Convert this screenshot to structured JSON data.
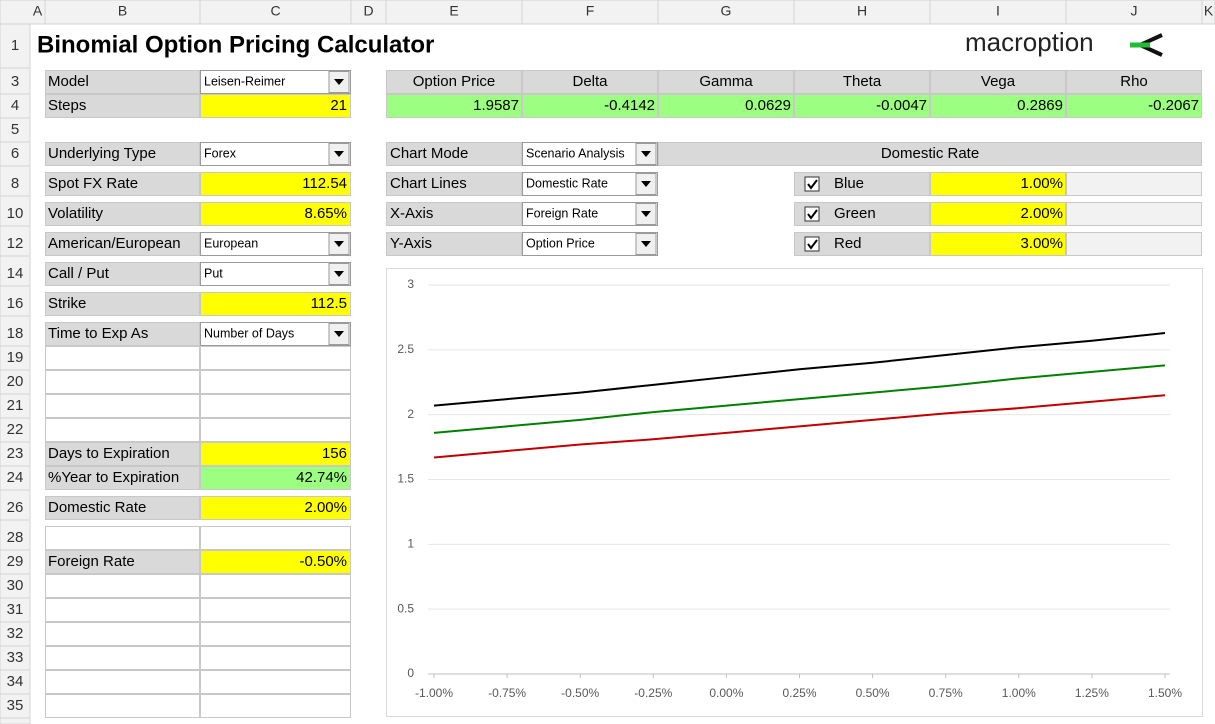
{
  "columns": [
    "A",
    "B",
    "C",
    "D",
    "E",
    "F",
    "G",
    "H",
    "I",
    "J",
    "K"
  ],
  "rows": [
    "1",
    "3",
    "4",
    "5",
    "6",
    "8",
    "10",
    "12",
    "14",
    "16",
    "18",
    "19",
    "20",
    "21",
    "22",
    "23",
    "24",
    "26",
    "28",
    "29",
    "30",
    "31",
    "32",
    "33",
    "34",
    "35"
  ],
  "title": "Binomial Option Pricing Calculator",
  "logo": "macroption",
  "inputs": [
    {
      "label": "Model",
      "value": "Leisen-Reimer",
      "kind": "select"
    },
    {
      "label": "Steps",
      "value": "21",
      "kind": "input"
    },
    {
      "label": "Underlying Type",
      "value": "Forex",
      "kind": "select"
    },
    {
      "label": "Spot FX Rate",
      "value": "112.54",
      "kind": "input"
    },
    {
      "label": "Volatility",
      "value": "8.65%",
      "kind": "input"
    },
    {
      "label": "American/European",
      "value": "European",
      "kind": "select"
    },
    {
      "label": "Call / Put",
      "value": "Put",
      "kind": "select"
    },
    {
      "label": "Strike",
      "value": "112.5",
      "kind": "input"
    },
    {
      "label": "Time to Exp As",
      "value": "Number of Days",
      "kind": "select"
    },
    {
      "label": "Days to Expiration",
      "value": "156",
      "kind": "input"
    },
    {
      "label": "%Year to Expiration",
      "value": "42.74%",
      "kind": "output"
    },
    {
      "label": "Domestic Rate",
      "value": "2.00%",
      "kind": "input"
    },
    {
      "label": "Foreign Rate",
      "value": "-0.50%",
      "kind": "input"
    }
  ],
  "results": {
    "headers": [
      "Option Price",
      "Delta",
      "Gamma",
      "Theta",
      "Vega",
      "Rho"
    ],
    "values": [
      "1.9587",
      "-0.4142",
      "0.0629",
      "-0.0047",
      "0.2869",
      "-0.2067"
    ]
  },
  "chart_controls": [
    {
      "label": "Chart Mode",
      "value": "Scenario Analysis"
    },
    {
      "label": "Chart Lines",
      "value": "Domestic Rate"
    },
    {
      "label": "X-Axis",
      "value": "Foreign Rate"
    },
    {
      "label": "Y-Axis",
      "value": "Option Price"
    }
  ],
  "chart_lines_header": "Domestic Rate",
  "chart_lines": [
    {
      "checked": true,
      "label": "Blue",
      "value": "1.00%"
    },
    {
      "checked": true,
      "label": "Green",
      "value": "2.00%"
    },
    {
      "checked": true,
      "label": "Red",
      "value": "3.00%"
    }
  ],
  "chart_data": {
    "type": "line",
    "x": [
      -1,
      -0.75,
      -0.5,
      -0.25,
      0,
      0.25,
      0.5,
      0.75,
      1,
      1.25,
      1.5
    ],
    "series": [
      {
        "color": "#000000",
        "values": [
          2.07,
          2.12,
          2.17,
          2.23,
          2.29,
          2.35,
          2.4,
          2.46,
          2.52,
          2.57,
          2.63
        ]
      },
      {
        "color": "#008000",
        "values": [
          1.86,
          1.91,
          1.96,
          2.02,
          2.07,
          2.12,
          2.17,
          2.22,
          2.28,
          2.33,
          2.38
        ]
      },
      {
        "color": "#c00000",
        "values": [
          1.67,
          1.72,
          1.77,
          1.81,
          1.86,
          1.91,
          1.96,
          2.01,
          2.05,
          2.1,
          2.15
        ]
      }
    ],
    "xlim": [
      -1,
      1.5
    ],
    "ylim": [
      0,
      3
    ],
    "xticks": [
      {
        "value": -1,
        "label": "-1.00%"
      },
      {
        "value": -0.75,
        "label": "-0.75%"
      },
      {
        "value": -0.5,
        "label": "-0.50%"
      },
      {
        "value": -0.25,
        "label": "-0.25%"
      },
      {
        "value": 0,
        "label": "0.00%"
      },
      {
        "value": 0.25,
        "label": "0.25%"
      },
      {
        "value": 0.5,
        "label": "0.50%"
      },
      {
        "value": 0.75,
        "label": "0.75%"
      },
      {
        "value": 1,
        "label": "1.00%"
      },
      {
        "value": 1.25,
        "label": "1.25%"
      },
      {
        "value": 1.5,
        "label": "1.50%"
      }
    ],
    "yticks": [
      0,
      0.5,
      1,
      1.5,
      2,
      2.5,
      3
    ],
    "grid": true
  }
}
